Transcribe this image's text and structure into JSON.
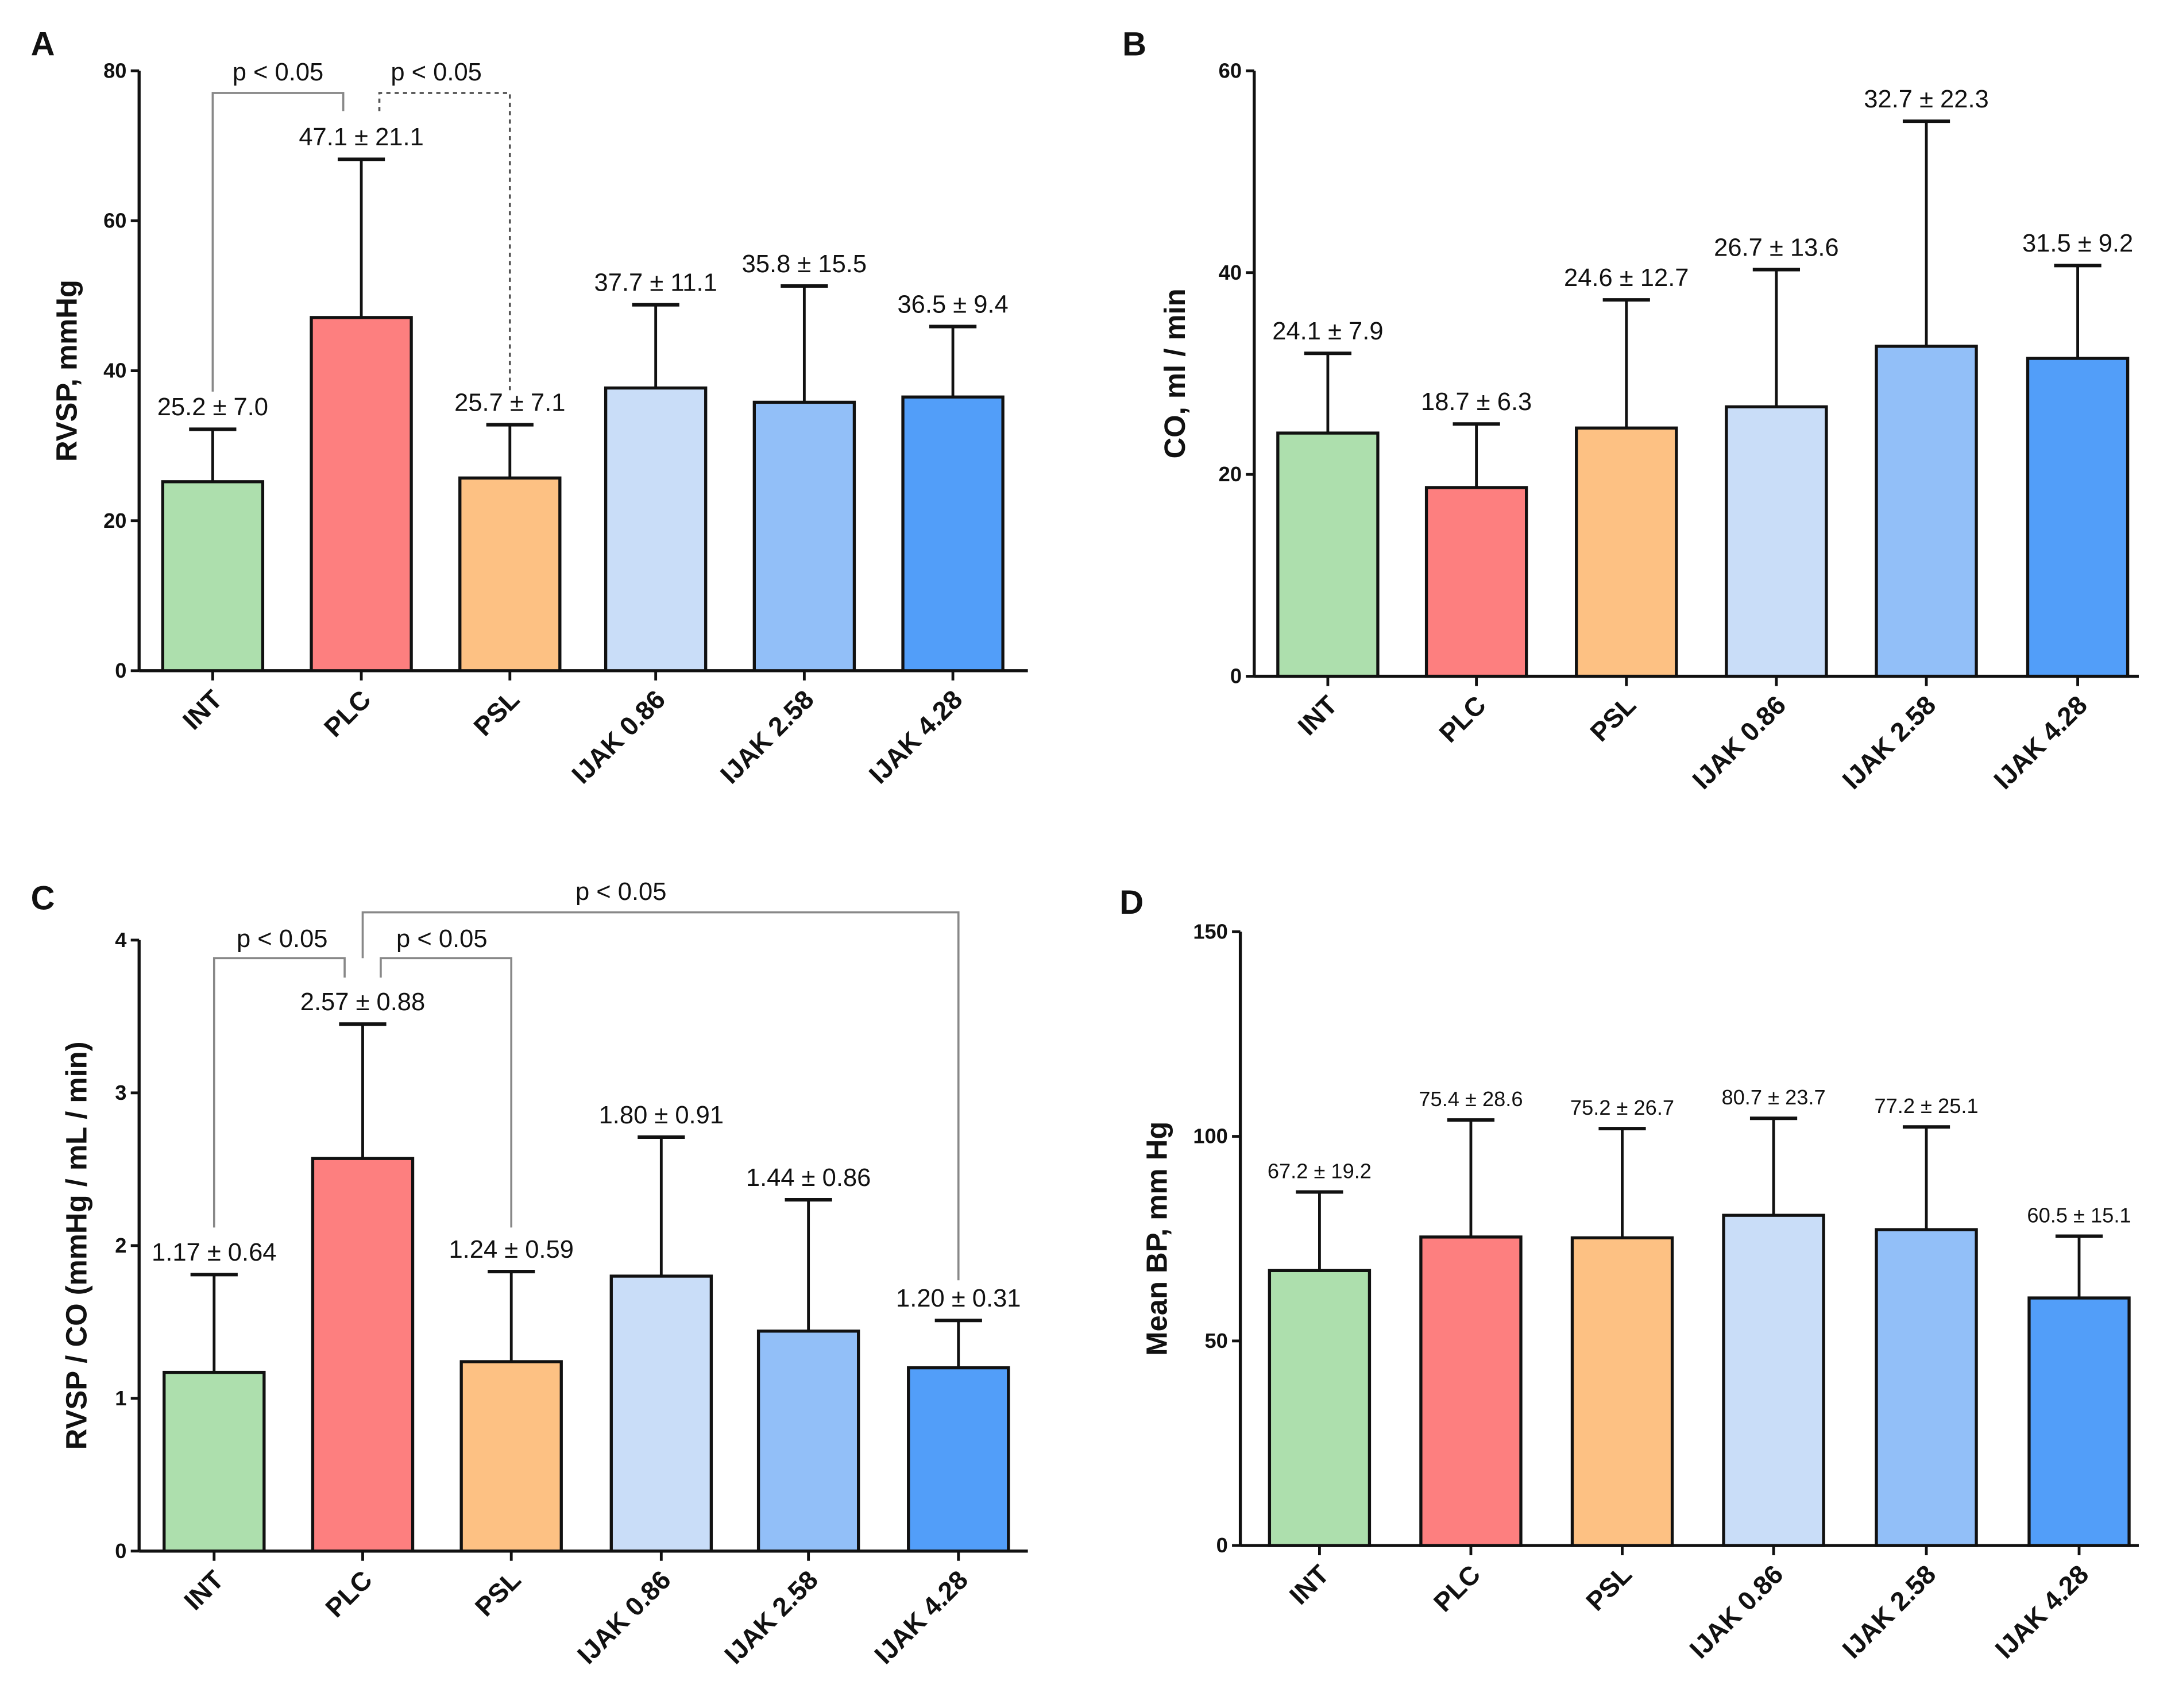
{
  "chart_data": [
    {
      "type": "bar",
      "panel": "A",
      "categories": [
        "INT",
        "PLC",
        "PSL",
        "IJAK 0.86",
        "IJAK 2.58",
        "IJAK 4.28"
      ],
      "values": [
        25.2,
        47.1,
        25.7,
        37.7,
        35.8,
        36.5
      ],
      "sd": [
        7.0,
        21.1,
        7.1,
        11.1,
        15.5,
        9.4
      ],
      "data_labels": [
        "25.2 ± 7.0",
        "47.1 ± 21.1",
        "25.7 ± 7.1",
        "37.7 ± 11.1",
        "35.8 ± 15.5",
        "36.5 ± 9.4"
      ],
      "ylabel": "RVSP, mmHg",
      "ylim": [
        0,
        80
      ],
      "yticks": [
        0,
        20,
        40,
        60,
        80
      ],
      "grid": false,
      "annotations": [
        {
          "from": "INT",
          "to": "PLC",
          "label": "p < 0.05",
          "style": "solid"
        },
        {
          "from": "PLC",
          "to": "PSL",
          "label": "p < 0.05",
          "style": "dashed"
        }
      ]
    },
    {
      "type": "bar",
      "panel": "B",
      "categories": [
        "INT",
        "PLC",
        "PSL",
        "IJAK 0.86",
        "IJAK 2.58",
        "IJAK 4.28"
      ],
      "values": [
        24.1,
        18.7,
        24.6,
        26.7,
        32.7,
        31.5
      ],
      "sd": [
        7.9,
        6.3,
        12.7,
        13.6,
        22.3,
        9.2
      ],
      "data_labels": [
        "24.1 ± 7.9",
        "18.7 ± 6.3",
        "24.6 ± 12.7",
        "26.7 ± 13.6",
        "32.7 ± 22.3",
        "31.5 ± 9.2"
      ],
      "ylabel": "CO, ml / min",
      "ylim": [
        0,
        60
      ],
      "yticks": [
        0,
        20,
        40,
        60
      ],
      "grid": false,
      "annotations": []
    },
    {
      "type": "bar",
      "panel": "C",
      "categories": [
        "INT",
        "PLC",
        "PSL",
        "IJAK 0.86",
        "IJAK 2.58",
        "IJAK 4.28"
      ],
      "values": [
        1.17,
        2.57,
        1.24,
        1.8,
        1.44,
        1.2
      ],
      "sd": [
        0.64,
        0.88,
        0.59,
        0.91,
        0.86,
        0.31
      ],
      "data_labels": [
        "1.17 ± 0.64",
        "2.57 ± 0.88",
        "1.24 ± 0.59",
        "1.80 ± 0.91",
        "1.44 ± 0.86",
        "1.20 ± 0.31"
      ],
      "ylabel": "RVSP / CO (mmHg / mL / min)",
      "ylim": [
        0,
        4
      ],
      "yticks": [
        0,
        1,
        2,
        3,
        4
      ],
      "grid": false,
      "annotations": [
        {
          "from": "INT",
          "to": "PLC",
          "label": "p < 0.05",
          "style": "solid"
        },
        {
          "from": "PLC",
          "to": "PSL",
          "label": "p < 0.05",
          "style": "solid"
        },
        {
          "from": "PLC",
          "to": "IJAK 4.28",
          "label": "p < 0.05",
          "style": "solid"
        }
      ]
    },
    {
      "type": "bar",
      "panel": "D",
      "categories": [
        "INT",
        "PLC",
        "PSL",
        "IJAK 0.86",
        "IJAK 2.58",
        "IJAK 4.28"
      ],
      "values": [
        67.2,
        75.4,
        75.2,
        80.7,
        77.2,
        60.5
      ],
      "sd": [
        19.2,
        28.6,
        26.7,
        23.7,
        25.1,
        15.1
      ],
      "data_labels": [
        "67.2 ± 19.2",
        "75.4 ± 28.6",
        "75.2 ± 26.7",
        "80.7 ± 23.7",
        "77.2 ± 25.1",
        "60.5 ± 15.1"
      ],
      "ylabel": "Mean BP, mm Hg",
      "ylim": [
        0,
        150
      ],
      "yticks": [
        0,
        50,
        100,
        150
      ],
      "grid": false,
      "annotations": []
    }
  ],
  "colors": {
    "INT": "#addfad",
    "PLC": "#fd7f7f",
    "PSL": "#fdc183",
    "IJAK 0.86": "#c9ddf8",
    "IJAK 2.58": "#92bff8",
    "IJAK 4.28": "#529ef9"
  }
}
